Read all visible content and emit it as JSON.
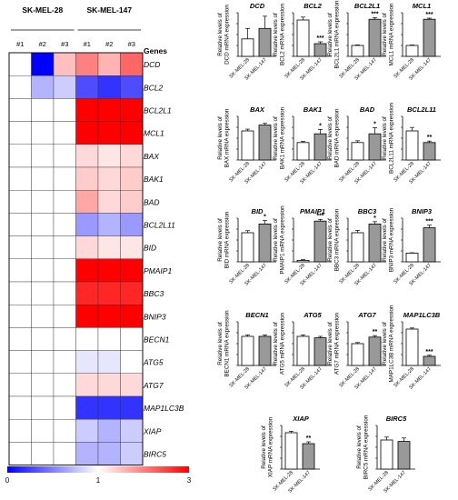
{
  "heatmap": {
    "group_labels": [
      "SK-MEL-28",
      "SK-MEL-147"
    ],
    "replicate_labels": [
      "#1",
      "#2",
      "#3",
      "#1",
      "#2",
      "#3"
    ],
    "genes_header": "Genes",
    "genes": [
      "DCD",
      "BCL2",
      "BCL2L1",
      "MCL1",
      "BAX",
      "BAK1",
      "BAD",
      "BCL2L11",
      "BID",
      "PMAIP1",
      "BBC3",
      "BNIP3",
      "BECN1",
      "ATG5",
      "ATG7",
      "MAP1LC3B",
      "XIAP",
      "BIRC5"
    ],
    "values": [
      [
        1.0,
        0.0,
        1.5,
        2.0,
        1.6,
        2.2
      ],
      [
        1.0,
        0.7,
        0.8,
        0.3,
        0.2,
        0.3
      ],
      [
        1.0,
        1.0,
        1.0,
        3.0,
        3.0,
        3.0
      ],
      [
        1.0,
        1.0,
        1.0,
        3.0,
        3.0,
        3.0
      ],
      [
        1.0,
        1.0,
        1.0,
        1.3,
        1.2,
        1.3
      ],
      [
        1.0,
        1.0,
        1.0,
        1.4,
        1.3,
        1.4
      ],
      [
        1.0,
        1.0,
        1.0,
        1.7,
        1.3,
        1.4
      ],
      [
        1.0,
        1.0,
        1.0,
        0.6,
        0.7,
        0.6
      ],
      [
        1.0,
        1.0,
        1.0,
        1.3,
        1.2,
        1.2
      ],
      [
        1.0,
        1.0,
        1.0,
        3.0,
        3.0,
        3.0
      ],
      [
        1.0,
        1.0,
        1.0,
        2.7,
        2.7,
        2.7
      ],
      [
        1.0,
        1.0,
        1.0,
        3.0,
        3.0,
        3.0
      ],
      [
        1.0,
        1.0,
        1.0,
        1.0,
        1.0,
        1.0
      ],
      [
        1.0,
        1.0,
        1.0,
        0.9,
        0.9,
        1.0
      ],
      [
        1.0,
        1.0,
        1.0,
        1.3,
        1.3,
        1.3
      ],
      [
        1.0,
        1.0,
        1.0,
        0.2,
        0.2,
        0.2
      ],
      [
        1.0,
        1.0,
        1.0,
        0.8,
        0.7,
        0.8
      ],
      [
        1.0,
        1.0,
        1.0,
        0.7,
        0.7,
        0.8
      ]
    ],
    "colorbar": {
      "min_label": "0",
      "mid_label": "1",
      "max_label": "3",
      "low_color": "#0000ff",
      "mid_color": "#ffffff",
      "high_color": "#ff0000"
    }
  },
  "chart_data": [
    {
      "type": "bar",
      "title": "DCD",
      "ylabel": "Relative levels of DCD mRNA expression",
      "categories": [
        "SK-MEL-28",
        "SK-MEL-147"
      ],
      "values": [
        1.0,
        1.6
      ],
      "errors": [
        0.6,
        0.7
      ],
      "significance": "",
      "ylim": [
        0,
        2.5
      ]
    },
    {
      "type": "bar",
      "title": "BCL2",
      "ylabel": "Relative levels of BCL2 mRNA expression",
      "categories": [
        "SK-MEL-28",
        "SK-MEL-147"
      ],
      "values": [
        1.0,
        0.35
      ],
      "errors": [
        0.08,
        0.05
      ],
      "significance": "***",
      "ylim": [
        0,
        1.2
      ]
    },
    {
      "type": "bar",
      "title": "BCL2L1",
      "ylabel": "Relative levels of BCL2L1 mRNA expression",
      "categories": [
        "SK-MEL-28",
        "SK-MEL-147"
      ],
      "values": [
        1.0,
        3.4
      ],
      "errors": [
        0.05,
        0.15
      ],
      "significance": "***",
      "ylim": [
        0,
        4
      ]
    },
    {
      "type": "bar",
      "title": "MCL1",
      "ylabel": "Relative levels of MCL1 mRNA expression",
      "categories": [
        "SK-MEL-28",
        "SK-MEL-147"
      ],
      "values": [
        1.0,
        3.4
      ],
      "errors": [
        0.04,
        0.1
      ],
      "significance": "***",
      "ylim": [
        0,
        4
      ]
    },
    {
      "type": "bar",
      "title": "BAX",
      "ylabel": "Relative levels of BAX mRNA expression",
      "categories": [
        "SK-MEL-28",
        "SK-MEL-147"
      ],
      "values": [
        1.0,
        1.2
      ],
      "errors": [
        0.06,
        0.06
      ],
      "significance": "",
      "ylim": [
        0,
        1.5
      ]
    },
    {
      "type": "bar",
      "title": "BAK1",
      "ylabel": "Relative levels of BAK1 mRNA expression",
      "categories": [
        "SK-MEL-28",
        "SK-MEL-147"
      ],
      "values": [
        1.0,
        1.5
      ],
      "errors": [
        0.06,
        0.25
      ],
      "significance": "*",
      "ylim": [
        0,
        2.5
      ]
    },
    {
      "type": "bar",
      "title": "BAD",
      "ylabel": "Relative levels of BAD mRNA expression",
      "categories": [
        "SK-MEL-28",
        "SK-MEL-147"
      ],
      "values": [
        1.0,
        1.5
      ],
      "errors": [
        0.1,
        0.35
      ],
      "significance": "*",
      "ylim": [
        0,
        2.5
      ]
    },
    {
      "type": "bar",
      "title": "BCL2L11",
      "ylabel": "Relative levels of BCL2L11 mRNA expression",
      "categories": [
        "SK-MEL-28",
        "SK-MEL-147"
      ],
      "values": [
        1.0,
        0.6
      ],
      "errors": [
        0.12,
        0.05
      ],
      "significance": "**",
      "ylim": [
        0,
        1.5
      ]
    },
    {
      "type": "bar",
      "title": "BID",
      "ylabel": "Relative levels of BID mRNA expression",
      "categories": [
        "SK-MEL-28",
        "SK-MEL-147"
      ],
      "values": [
        1.0,
        1.3
      ],
      "errors": [
        0.07,
        0.12
      ],
      "significance": "*",
      "ylim": [
        0,
        1.5
      ]
    },
    {
      "type": "bar",
      "title": "PMAIP1",
      "ylabel": "Relative levels of PMAIP1 mRNA expression",
      "categories": [
        "SK-MEL-28",
        "SK-MEL-147"
      ],
      "values": [
        1.0,
        28
      ],
      "errors": [
        0.5,
        1.2
      ],
      "significance": "***",
      "ylim": [
        0,
        30
      ]
    },
    {
      "type": "bar",
      "title": "BBC3",
      "ylabel": "Relative levels of BBC3 mRNA expression",
      "categories": [
        "SK-MEL-28",
        "SK-MEL-147"
      ],
      "values": [
        1.0,
        1.3
      ],
      "errors": [
        0.08,
        0.08
      ],
      "significance": "*",
      "ylim": [
        0,
        1.5
      ]
    },
    {
      "type": "bar",
      "title": "BNIP3",
      "ylabel": "Relative levels of BNIP3 mRNA expression",
      "categories": [
        "SK-MEL-28",
        "SK-MEL-147"
      ],
      "values": [
        1.0,
        3.9
      ],
      "errors": [
        0.04,
        0.3
      ],
      "significance": "***",
      "ylim": [
        0,
        5
      ]
    },
    {
      "type": "bar",
      "title": "BECN1",
      "ylabel": "Relative levels of BECN1 mRNA expression",
      "categories": [
        "SK-MEL-28",
        "SK-MEL-147"
      ],
      "values": [
        1.0,
        1.0
      ],
      "errors": [
        0.05,
        0.05
      ],
      "significance": "",
      "ylim": [
        0,
        1.5
      ]
    },
    {
      "type": "bar",
      "title": "ATG5",
      "ylabel": "Relative levels of ATG5 mRNA expression",
      "categories": [
        "SK-MEL-28",
        "SK-MEL-147"
      ],
      "values": [
        1.0,
        0.95
      ],
      "errors": [
        0.05,
        0.05
      ],
      "significance": "",
      "ylim": [
        0,
        1.5
      ]
    },
    {
      "type": "bar",
      "title": "ATG7",
      "ylabel": "Relative levels of ATG7 mRNA expression",
      "categories": [
        "SK-MEL-28",
        "SK-MEL-147"
      ],
      "values": [
        1.0,
        1.3
      ],
      "errors": [
        0.05,
        0.07
      ],
      "significance": "**",
      "ylim": [
        0,
        2
      ]
    },
    {
      "type": "bar",
      "title": "MAP1LC3B",
      "ylabel": "Relative levels of MAP1LC3B mRNA expression",
      "categories": [
        "SK-MEL-28",
        "SK-MEL-147"
      ],
      "values": [
        1.0,
        0.25
      ],
      "errors": [
        0.03,
        0.03
      ],
      "significance": "***",
      "ylim": [
        0,
        1.2
      ]
    },
    {
      "type": "bar",
      "title": "XIAP",
      "ylabel": "Relative levels of XIAP mRNA expression",
      "categories": [
        "SK-MEL-28",
        "SK-MEL-147"
      ],
      "values": [
        1.0,
        0.7
      ],
      "errors": [
        0.04,
        0.05
      ],
      "significance": "**",
      "ylim": [
        0,
        1.2
      ]
    },
    {
      "type": "bar",
      "title": "BIRC5",
      "ylabel": "Relative levels of BIRC5 mRNA expression",
      "categories": [
        "SK-MEL-28",
        "SK-MEL-147"
      ],
      "values": [
        1.0,
        0.95
      ],
      "errors": [
        0.1,
        0.12
      ],
      "significance": "",
      "ylim": [
        0,
        1.5
      ]
    }
  ]
}
